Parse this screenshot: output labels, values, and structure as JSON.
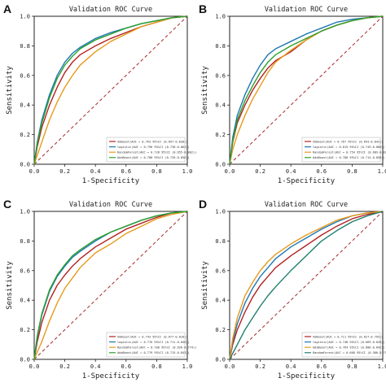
{
  "chart_data": [
    {
      "panel": "A",
      "type": "line",
      "title": "Validation ROC Curve",
      "xlabel": "1-Specificity",
      "ylabel": "Sensitivity",
      "xlim": [
        0,
        1
      ],
      "ylim": [
        0,
        1
      ],
      "xticks": [
        "0.0",
        "0.2",
        "0.4",
        "0.6",
        "0.8",
        "1.0"
      ],
      "yticks": [
        "0.0",
        "0.2",
        "0.4",
        "0.6",
        "0.8",
        "1.0"
      ],
      "grid": false,
      "legend_position": "bottom-right",
      "reference_line": {
        "x": [
          0,
          1
        ],
        "y": [
          0,
          1
        ],
        "color": "#a52a2a",
        "style": "dashed"
      },
      "series": [
        {
          "name": "XGBoost(AUC = 0.763 95%CI (0.697-0.830))",
          "color": "#b22222",
          "x": [
            0,
            0.02,
            0.05,
            0.1,
            0.15,
            0.2,
            0.25,
            0.3,
            0.4,
            0.5,
            0.6,
            0.7,
            0.8,
            0.9,
            1.0
          ],
          "y": [
            0,
            0.12,
            0.25,
            0.4,
            0.52,
            0.62,
            0.69,
            0.74,
            0.8,
            0.85,
            0.89,
            0.93,
            0.96,
            0.99,
            1.0
          ]
        },
        {
          "name": "logistic(AUC = 0.796 95%CI (0.730-0.862))",
          "color": "#1f77b4",
          "x": [
            0,
            0.02,
            0.05,
            0.1,
            0.15,
            0.2,
            0.25,
            0.3,
            0.4,
            0.5,
            0.6,
            0.7,
            0.8,
            0.9,
            1.0
          ],
          "y": [
            0,
            0.15,
            0.3,
            0.47,
            0.6,
            0.69,
            0.75,
            0.79,
            0.85,
            0.89,
            0.92,
            0.95,
            0.97,
            0.99,
            1.0
          ]
        },
        {
          "name": "RandomForest(AUC = 0.728 95%CI (0.655-0.802))",
          "color": "#e69a1c",
          "x": [
            0,
            0.02,
            0.05,
            0.1,
            0.15,
            0.2,
            0.25,
            0.3,
            0.4,
            0.5,
            0.6,
            0.7,
            0.8,
            0.9,
            1.0
          ],
          "y": [
            0,
            0.06,
            0.15,
            0.3,
            0.42,
            0.52,
            0.6,
            0.67,
            0.76,
            0.83,
            0.88,
            0.93,
            0.96,
            0.99,
            1.0
          ]
        },
        {
          "name": "AdaBoost(AUC = 0.788 95%CI (0.720-0.856))",
          "color": "#2ca02c",
          "x": [
            0,
            0.02,
            0.05,
            0.1,
            0.15,
            0.2,
            0.25,
            0.3,
            0.4,
            0.5,
            0.6,
            0.7,
            0.8,
            0.9,
            1.0
          ],
          "y": [
            0,
            0.14,
            0.28,
            0.45,
            0.58,
            0.67,
            0.73,
            0.78,
            0.84,
            0.88,
            0.92,
            0.95,
            0.97,
            0.99,
            1.0
          ]
        }
      ]
    },
    {
      "panel": "B",
      "type": "line",
      "title": "Validation ROC Curve",
      "xlabel": "1-Specificity",
      "ylabel": "Sensitivity",
      "xlim": [
        0,
        1
      ],
      "ylim": [
        0,
        1
      ],
      "xticks": [
        "0.0",
        "0.2",
        "0.4",
        "0.6",
        "0.8",
        "1.0"
      ],
      "yticks": [
        "0.0",
        "0.2",
        "0.4",
        "0.6",
        "0.8",
        "1.0"
      ],
      "grid": false,
      "legend_position": "bottom-right",
      "reference_line": {
        "x": [
          0,
          1
        ],
        "y": [
          0,
          1
        ],
        "color": "#a52a2a",
        "style": "dashed"
      },
      "series": [
        {
          "name": "XGBoost(AUC = 0.767 95%CI (0.693-0.842))",
          "color": "#b22222",
          "x": [
            0,
            0.02,
            0.05,
            0.1,
            0.15,
            0.2,
            0.25,
            0.3,
            0.4,
            0.5,
            0.6,
            0.7,
            0.8,
            0.9,
            1.0
          ],
          "y": [
            0,
            0.15,
            0.28,
            0.4,
            0.5,
            0.58,
            0.65,
            0.7,
            0.76,
            0.84,
            0.9,
            0.94,
            0.97,
            0.99,
            1.0
          ]
        },
        {
          "name": "logistic(AUC = 0.815 95%CI (0.749-0.880))",
          "color": "#1f77b4",
          "x": [
            0,
            0.02,
            0.05,
            0.1,
            0.15,
            0.2,
            0.25,
            0.3,
            0.4,
            0.5,
            0.6,
            0.7,
            0.8,
            0.9,
            1.0
          ],
          "y": [
            0,
            0.18,
            0.33,
            0.47,
            0.58,
            0.67,
            0.74,
            0.78,
            0.83,
            0.88,
            0.92,
            0.96,
            0.98,
            0.99,
            1.0
          ]
        },
        {
          "name": "RandomForest(AUC = 0.754 95%CI (0.683-0.826))",
          "color": "#e69a1c",
          "x": [
            0,
            0.02,
            0.05,
            0.1,
            0.15,
            0.2,
            0.25,
            0.3,
            0.4,
            0.5,
            0.6,
            0.7,
            0.8,
            0.9,
            1.0
          ],
          "y": [
            0,
            0.1,
            0.2,
            0.33,
            0.44,
            0.53,
            0.62,
            0.69,
            0.77,
            0.84,
            0.9,
            0.94,
            0.97,
            0.99,
            1.0
          ]
        },
        {
          "name": "AdaBoost(AUC = 0.786 95%CI (0.714-0.858))",
          "color": "#2ca02c",
          "x": [
            0,
            0.02,
            0.05,
            0.1,
            0.15,
            0.2,
            0.25,
            0.3,
            0.4,
            0.5,
            0.6,
            0.7,
            0.8,
            0.9,
            1.0
          ],
          "y": [
            0,
            0.16,
            0.3,
            0.43,
            0.53,
            0.62,
            0.69,
            0.74,
            0.8,
            0.85,
            0.9,
            0.94,
            0.97,
            0.99,
            1.0
          ]
        }
      ]
    },
    {
      "panel": "C",
      "type": "line",
      "title": "Validation ROC Curve",
      "xlabel": "1-Specificity",
      "ylabel": "Sensitivity",
      "xlim": [
        0,
        1
      ],
      "ylim": [
        0,
        1
      ],
      "xticks": [
        "0.0",
        "0.2",
        "0.4",
        "0.6",
        "0.8",
        "1.0"
      ],
      "yticks": [
        "0.0",
        "0.2",
        "0.4",
        "0.6",
        "0.8",
        "1.0"
      ],
      "grid": false,
      "legend_position": "bottom-right",
      "reference_line": {
        "x": [
          0,
          1
        ],
        "y": [
          0,
          1
        ],
        "color": "#a52a2a",
        "style": "dashed"
      },
      "series": [
        {
          "name": "XGBoost(AUC = 0.743 95%CI (0.677-0.810))",
          "color": "#b22222",
          "x": [
            0,
            0.02,
            0.05,
            0.1,
            0.15,
            0.2,
            0.25,
            0.3,
            0.4,
            0.5,
            0.6,
            0.7,
            0.8,
            0.9,
            1.0
          ],
          "y": [
            0,
            0.12,
            0.25,
            0.4,
            0.5,
            0.57,
            0.63,
            0.68,
            0.76,
            0.82,
            0.88,
            0.92,
            0.96,
            0.99,
            1.0
          ]
        },
        {
          "name": "logistic(AUC = 0.776 95%CI (0.711-0.840))",
          "color": "#1f77b4",
          "x": [
            0,
            0.02,
            0.05,
            0.1,
            0.15,
            0.2,
            0.25,
            0.3,
            0.4,
            0.5,
            0.6,
            0.7,
            0.8,
            0.9,
            1.0
          ],
          "y": [
            0,
            0.15,
            0.3,
            0.46,
            0.56,
            0.63,
            0.69,
            0.73,
            0.8,
            0.86,
            0.9,
            0.94,
            0.97,
            0.99,
            1.0
          ]
        },
        {
          "name": "RandomForest(AUC = 0.700 95%CI (0.626-0.774))",
          "color": "#e69a1c",
          "x": [
            0,
            0.02,
            0.05,
            0.1,
            0.15,
            0.2,
            0.25,
            0.3,
            0.4,
            0.5,
            0.6,
            0.7,
            0.8,
            0.9,
            1.0
          ],
          "y": [
            0,
            0.05,
            0.12,
            0.26,
            0.38,
            0.48,
            0.55,
            0.62,
            0.72,
            0.78,
            0.85,
            0.9,
            0.95,
            0.98,
            1.0
          ]
        },
        {
          "name": "AdaBoost(AUC = 0.779 95%CI (0.715-0.843))",
          "color": "#2ca02c",
          "x": [
            0,
            0.02,
            0.05,
            0.1,
            0.15,
            0.2,
            0.25,
            0.3,
            0.4,
            0.5,
            0.6,
            0.7,
            0.8,
            0.9,
            1.0
          ],
          "y": [
            0,
            0.16,
            0.31,
            0.47,
            0.57,
            0.64,
            0.7,
            0.74,
            0.81,
            0.86,
            0.9,
            0.94,
            0.97,
            0.99,
            1.0
          ]
        }
      ]
    },
    {
      "panel": "D",
      "type": "line",
      "title": "Validation ROC Curve",
      "xlabel": "1-Specificity",
      "ylabel": "Sensitivity",
      "xlim": [
        0,
        1
      ],
      "ylim": [
        0,
        1
      ],
      "xticks": [
        "0.0",
        "0.2",
        "0.4",
        "0.6",
        "0.8",
        "1.0"
      ],
      "yticks": [
        "0.0",
        "0.2",
        "0.4",
        "0.6",
        "0.8",
        "1.0"
      ],
      "grid": false,
      "legend_position": "bottom-right",
      "reference_line": {
        "x": [
          0,
          1
        ],
        "y": [
          0,
          1
        ],
        "color": "#a52a2a",
        "style": "dashed"
      },
      "series": [
        {
          "name": "XGBoost(AUC = 0.711 95%CI (0.627-0.795))",
          "color": "#b22222",
          "x": [
            0,
            0.02,
            0.05,
            0.1,
            0.15,
            0.2,
            0.25,
            0.3,
            0.4,
            0.5,
            0.6,
            0.7,
            0.8,
            0.9,
            1.0
          ],
          "y": [
            0,
            0.1,
            0.2,
            0.32,
            0.42,
            0.5,
            0.56,
            0.62,
            0.7,
            0.77,
            0.84,
            0.9,
            0.95,
            0.98,
            1.0
          ]
        },
        {
          "name": "logistic(AUC = 0.748 95%CI (0.669-0.828))",
          "color": "#1f77b4",
          "x": [
            0,
            0.02,
            0.05,
            0.1,
            0.15,
            0.2,
            0.25,
            0.3,
            0.4,
            0.5,
            0.6,
            0.7,
            0.8,
            0.9,
            1.0
          ],
          "y": [
            0,
            0.12,
            0.24,
            0.38,
            0.48,
            0.56,
            0.62,
            0.68,
            0.76,
            0.82,
            0.88,
            0.93,
            0.97,
            0.99,
            1.0
          ]
        },
        {
          "name": "AdaBoost(AUC = 0.764 95%CI (0.686-0.842))",
          "color": "#e69a1c",
          "x": [
            0,
            0.02,
            0.05,
            0.1,
            0.15,
            0.2,
            0.25,
            0.3,
            0.4,
            0.5,
            0.6,
            0.7,
            0.8,
            0.9,
            1.0
          ],
          "y": [
            0,
            0.14,
            0.28,
            0.43,
            0.52,
            0.6,
            0.66,
            0.71,
            0.78,
            0.84,
            0.89,
            0.94,
            0.97,
            0.99,
            1.0
          ]
        },
        {
          "name": "RandomForest(AUC = 0.668 95%CI (0.580-0.756))",
          "color": "#1e7f6e",
          "x": [
            0,
            0.02,
            0.05,
            0.1,
            0.15,
            0.2,
            0.25,
            0.3,
            0.4,
            0.5,
            0.6,
            0.7,
            0.8,
            0.9,
            1.0
          ],
          "y": [
            0,
            0.04,
            0.1,
            0.2,
            0.28,
            0.36,
            0.43,
            0.49,
            0.6,
            0.7,
            0.8,
            0.87,
            0.93,
            0.97,
            1.0
          ]
        }
      ]
    }
  ]
}
